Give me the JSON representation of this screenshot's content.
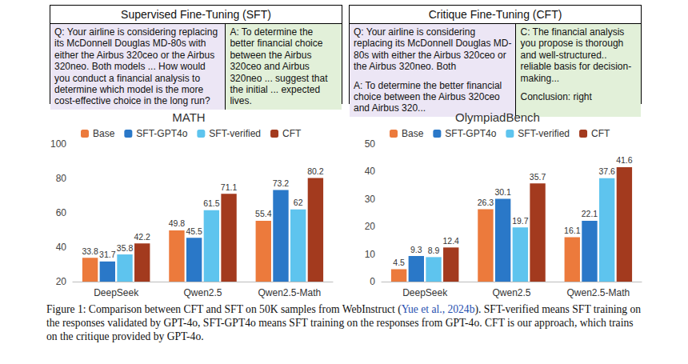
{
  "panels": [
    {
      "title": "Supervised Fine-Tuning (SFT)",
      "cells": [
        {
          "color": "#ece6f5",
          "paragraphs": [
            "Q: Your airline is considering replacing its McDonnell Douglas MD-80s with either the Airbus 320ceo or the Airbus 320neo. Both models ...  How would you conduct a financial analysis to determine which model is the more cost-effective choice in the long run?"
          ]
        },
        {
          "color": "#e2f0d9",
          "paragraphs": [
            "A: To determine the better financial choice between the Airbus 320ceo and Airbus 320neo ... suggest that the initial ... expected lives."
          ]
        }
      ]
    },
    {
      "title": "Critique Fine-Tuning (CFT)",
      "cells": [
        {
          "color": "#ece6f5",
          "paragraphs": [
            "Q: Your airline is considering replacing its McDonnell Douglas MD-80s with either the Airbus 320ceo or the Airbus 320neo. Both",
            "A: To determine the better financial choice between the Airbus 320ceo and Airbus 320..."
          ]
        },
        {
          "color": "#e2f0d9",
          "paragraphs": [
            "C: The financial analysis you propose is thorough and well-structured.. reliable basis for decision-making...",
            "Conclusion: right"
          ]
        }
      ]
    }
  ],
  "chart_data": [
    {
      "type": "bar",
      "title": "MATH",
      "categories": [
        "DeepSeek",
        "Qwen2.5",
        "Qwen2.5-Math"
      ],
      "series": [
        {
          "name": "Base",
          "color": "#ec7a3c",
          "values": [
            33.8,
            49.8,
            55.4
          ]
        },
        {
          "name": "SFT-GPT4o",
          "color": "#2a78c8",
          "values": [
            31.7,
            45.5,
            73.2
          ]
        },
        {
          "name": "SFT-verified",
          "color": "#5ec4ee",
          "values": [
            35.8,
            61.5,
            62
          ]
        },
        {
          "name": "CFT",
          "color": "#a33a1e",
          "values": [
            42.2,
            71.1,
            80.2
          ]
        }
      ],
      "ylim": [
        20,
        100
      ],
      "yticks": [
        20,
        40,
        60,
        80,
        100
      ],
      "grid": false,
      "legend": "top-left",
      "data_labels": true
    },
    {
      "type": "bar",
      "title": "OlympiadBench",
      "categories": [
        "DeepSeek",
        "Qwen2.5",
        "Qwen2.5-Math"
      ],
      "series": [
        {
          "name": "Base",
          "color": "#ec7a3c",
          "values": [
            4.5,
            26.3,
            16.1
          ]
        },
        {
          "name": "SFT-GPT4o",
          "color": "#2a78c8",
          "values": [
            9.3,
            30.1,
            22.1
          ]
        },
        {
          "name": "SFT-verified",
          "color": "#5ec4ee",
          "values": [
            8.9,
            19.7,
            37.6
          ]
        },
        {
          "name": "CFT",
          "color": "#a33a1e",
          "values": [
            12.4,
            35.7,
            41.6
          ]
        }
      ],
      "ylim": [
        0,
        50
      ],
      "yticks": [
        0,
        10,
        20,
        30,
        40,
        50
      ],
      "grid": false,
      "legend": "top-left",
      "data_labels": true
    }
  ],
  "caption": {
    "text": "Figure 1: Comparison between CFT and SFT on 50K samples from WebInstruct (Yue et al., 2024b). SFT-verified means SFT training on the responses validated by GPT-4o, SFT-GPT4o means SFT training on the responses from GPT-4o. CFT is our approach, which trains on the critique provided by GPT-4o.",
    "citation": "Yue et al., 2024b"
  }
}
